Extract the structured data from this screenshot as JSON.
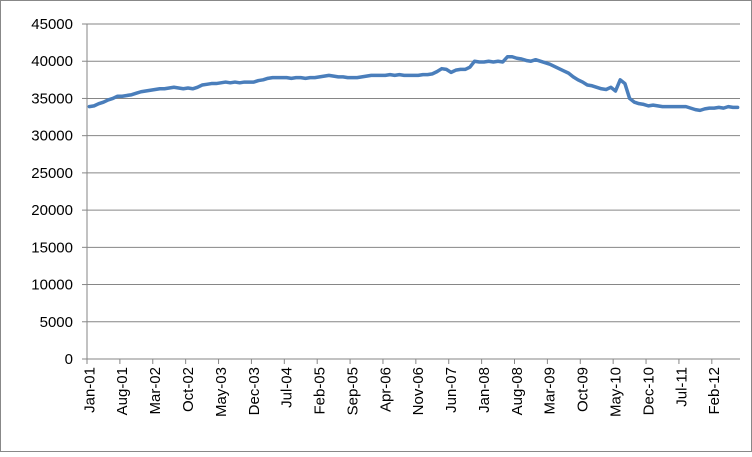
{
  "chart_data": {
    "type": "line",
    "categories": [
      "Jan-01",
      null,
      null,
      null,
      null,
      null,
      null,
      "Aug-01",
      null,
      null,
      null,
      null,
      null,
      null,
      "Mar-02",
      null,
      null,
      null,
      null,
      null,
      null,
      "Oct-02",
      null,
      null,
      null,
      null,
      null,
      null,
      "May-03",
      null,
      null,
      null,
      null,
      null,
      null,
      "Dec-03",
      null,
      null,
      null,
      null,
      null,
      null,
      "Jul-04",
      null,
      null,
      null,
      null,
      null,
      null,
      "Feb-05",
      null,
      null,
      null,
      null,
      null,
      null,
      "Sep-05",
      null,
      null,
      null,
      null,
      null,
      null,
      "Apr-06",
      null,
      null,
      null,
      null,
      null,
      null,
      "Nov-06",
      null,
      null,
      null,
      null,
      null,
      null,
      "Jun-07",
      null,
      null,
      null,
      null,
      null,
      null,
      "Jan-08",
      null,
      null,
      null,
      null,
      null,
      null,
      "Aug-08",
      null,
      null,
      null,
      null,
      null,
      null,
      "Mar-09",
      null,
      null,
      null,
      null,
      null,
      null,
      "Oct-09",
      null,
      null,
      null,
      null,
      null,
      null,
      "May-10",
      null,
      null,
      null,
      null,
      null,
      null,
      "Dec-10",
      null,
      null,
      null,
      null,
      null,
      null,
      "Jul-11",
      null,
      null,
      null,
      null,
      null,
      null,
      "Feb-12",
      null,
      null,
      null,
      null,
      null
    ],
    "values": [
      33900,
      34000,
      34300,
      34500,
      34800,
      35000,
      35300,
      35300,
      35400,
      35500,
      35700,
      35900,
      36000,
      36100,
      36200,
      36300,
      36300,
      36400,
      36500,
      36400,
      36300,
      36400,
      36300,
      36500,
      36800,
      36900,
      37000,
      37000,
      37100,
      37200,
      37100,
      37200,
      37100,
      37200,
      37200,
      37200,
      37400,
      37500,
      37700,
      37800,
      37800,
      37800,
      37800,
      37700,
      37800,
      37800,
      37700,
      37800,
      37800,
      37900,
      38000,
      38100,
      38000,
      37900,
      37900,
      37800,
      37800,
      37800,
      37900,
      38000,
      38100,
      38100,
      38100,
      38100,
      38200,
      38100,
      38200,
      38100,
      38100,
      38100,
      38100,
      38200,
      38200,
      38300,
      38600,
      39000,
      38900,
      38500,
      38800,
      38900,
      38900,
      39200,
      40000,
      39900,
      39900,
      40000,
      39900,
      40000,
      39900,
      40600,
      40600,
      40400,
      40300,
      40100,
      40000,
      40200,
      40000,
      39800,
      39600,
      39300,
      39000,
      38700,
      38400,
      37900,
      37500,
      37200,
      36800,
      36700,
      36500,
      36300,
      36200,
      36500,
      36000,
      37500,
      37000,
      35000,
      34500,
      34300,
      34200,
      34000,
      34100,
      34000,
      33900,
      33900,
      33900,
      33900,
      33900,
      33900,
      33700,
      33500,
      33400,
      33600,
      33700,
      33700,
      33800,
      33700,
      33900,
      33800,
      33800
    ],
    "color": "#4a7ebb",
    "ylim": [
      0,
      45000
    ],
    "yticks": [
      0,
      5000,
      10000,
      15000,
      20000,
      25000,
      30000,
      35000,
      40000,
      45000
    ],
    "grid": true
  }
}
